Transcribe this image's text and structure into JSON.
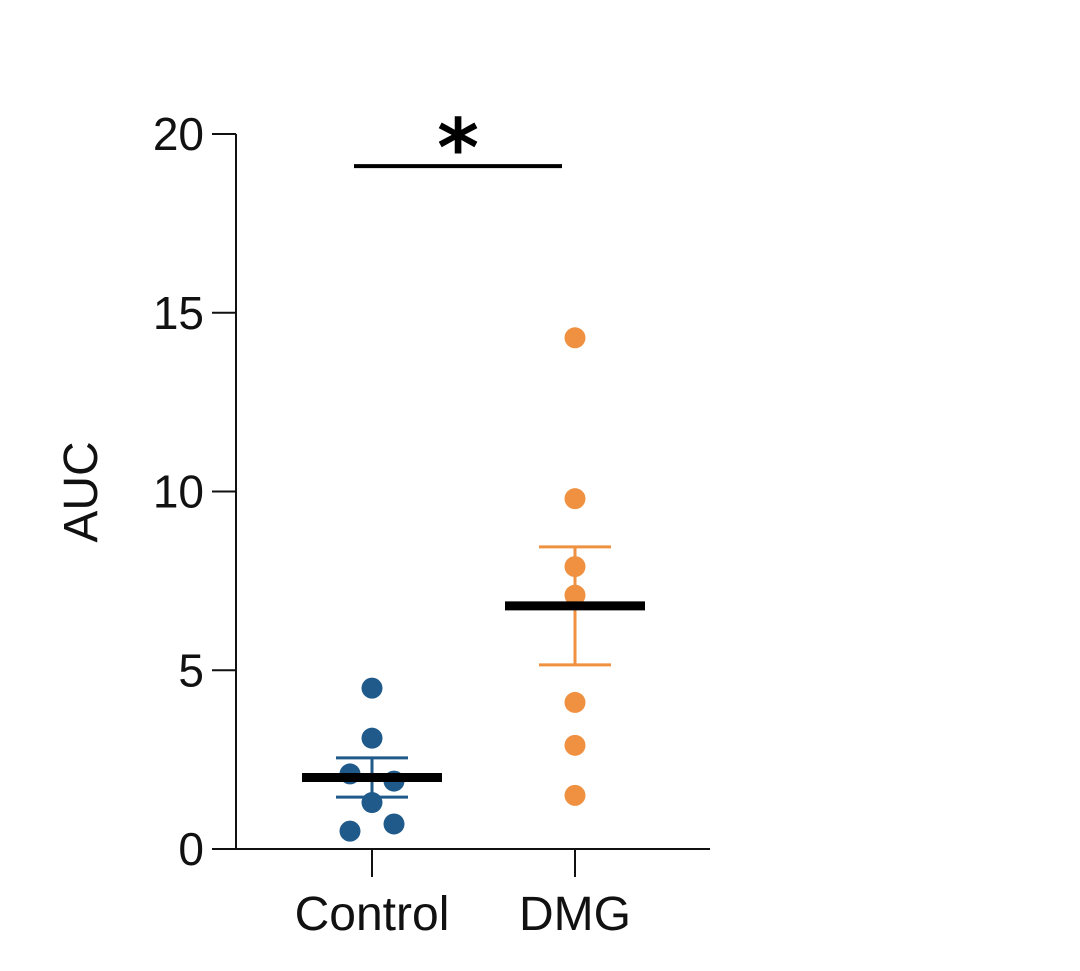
{
  "chart_data": {
    "type": "scatter",
    "ylabel": "AUC",
    "ylim": [
      0,
      20
    ],
    "yticks": [
      0,
      5,
      10,
      15,
      20
    ],
    "categories": [
      "Control",
      "DMG"
    ],
    "grid": false,
    "series": [
      {
        "category": "Control",
        "color": "#1f5a8a",
        "values": [
          4.5,
          3.1,
          2.1,
          1.9,
          1.3,
          0.7,
          0.5
        ],
        "mean": 2.0,
        "sem": 0.55
      },
      {
        "category": "DMG",
        "color": "#ef9140",
        "values": [
          14.3,
          9.8,
          7.9,
          7.1,
          4.1,
          2.9,
          1.5
        ],
        "mean": 6.8,
        "sem": 1.65
      }
    ],
    "significance": {
      "label": "*",
      "between": [
        "Control",
        "DMG"
      ],
      "y": 19.1
    }
  }
}
